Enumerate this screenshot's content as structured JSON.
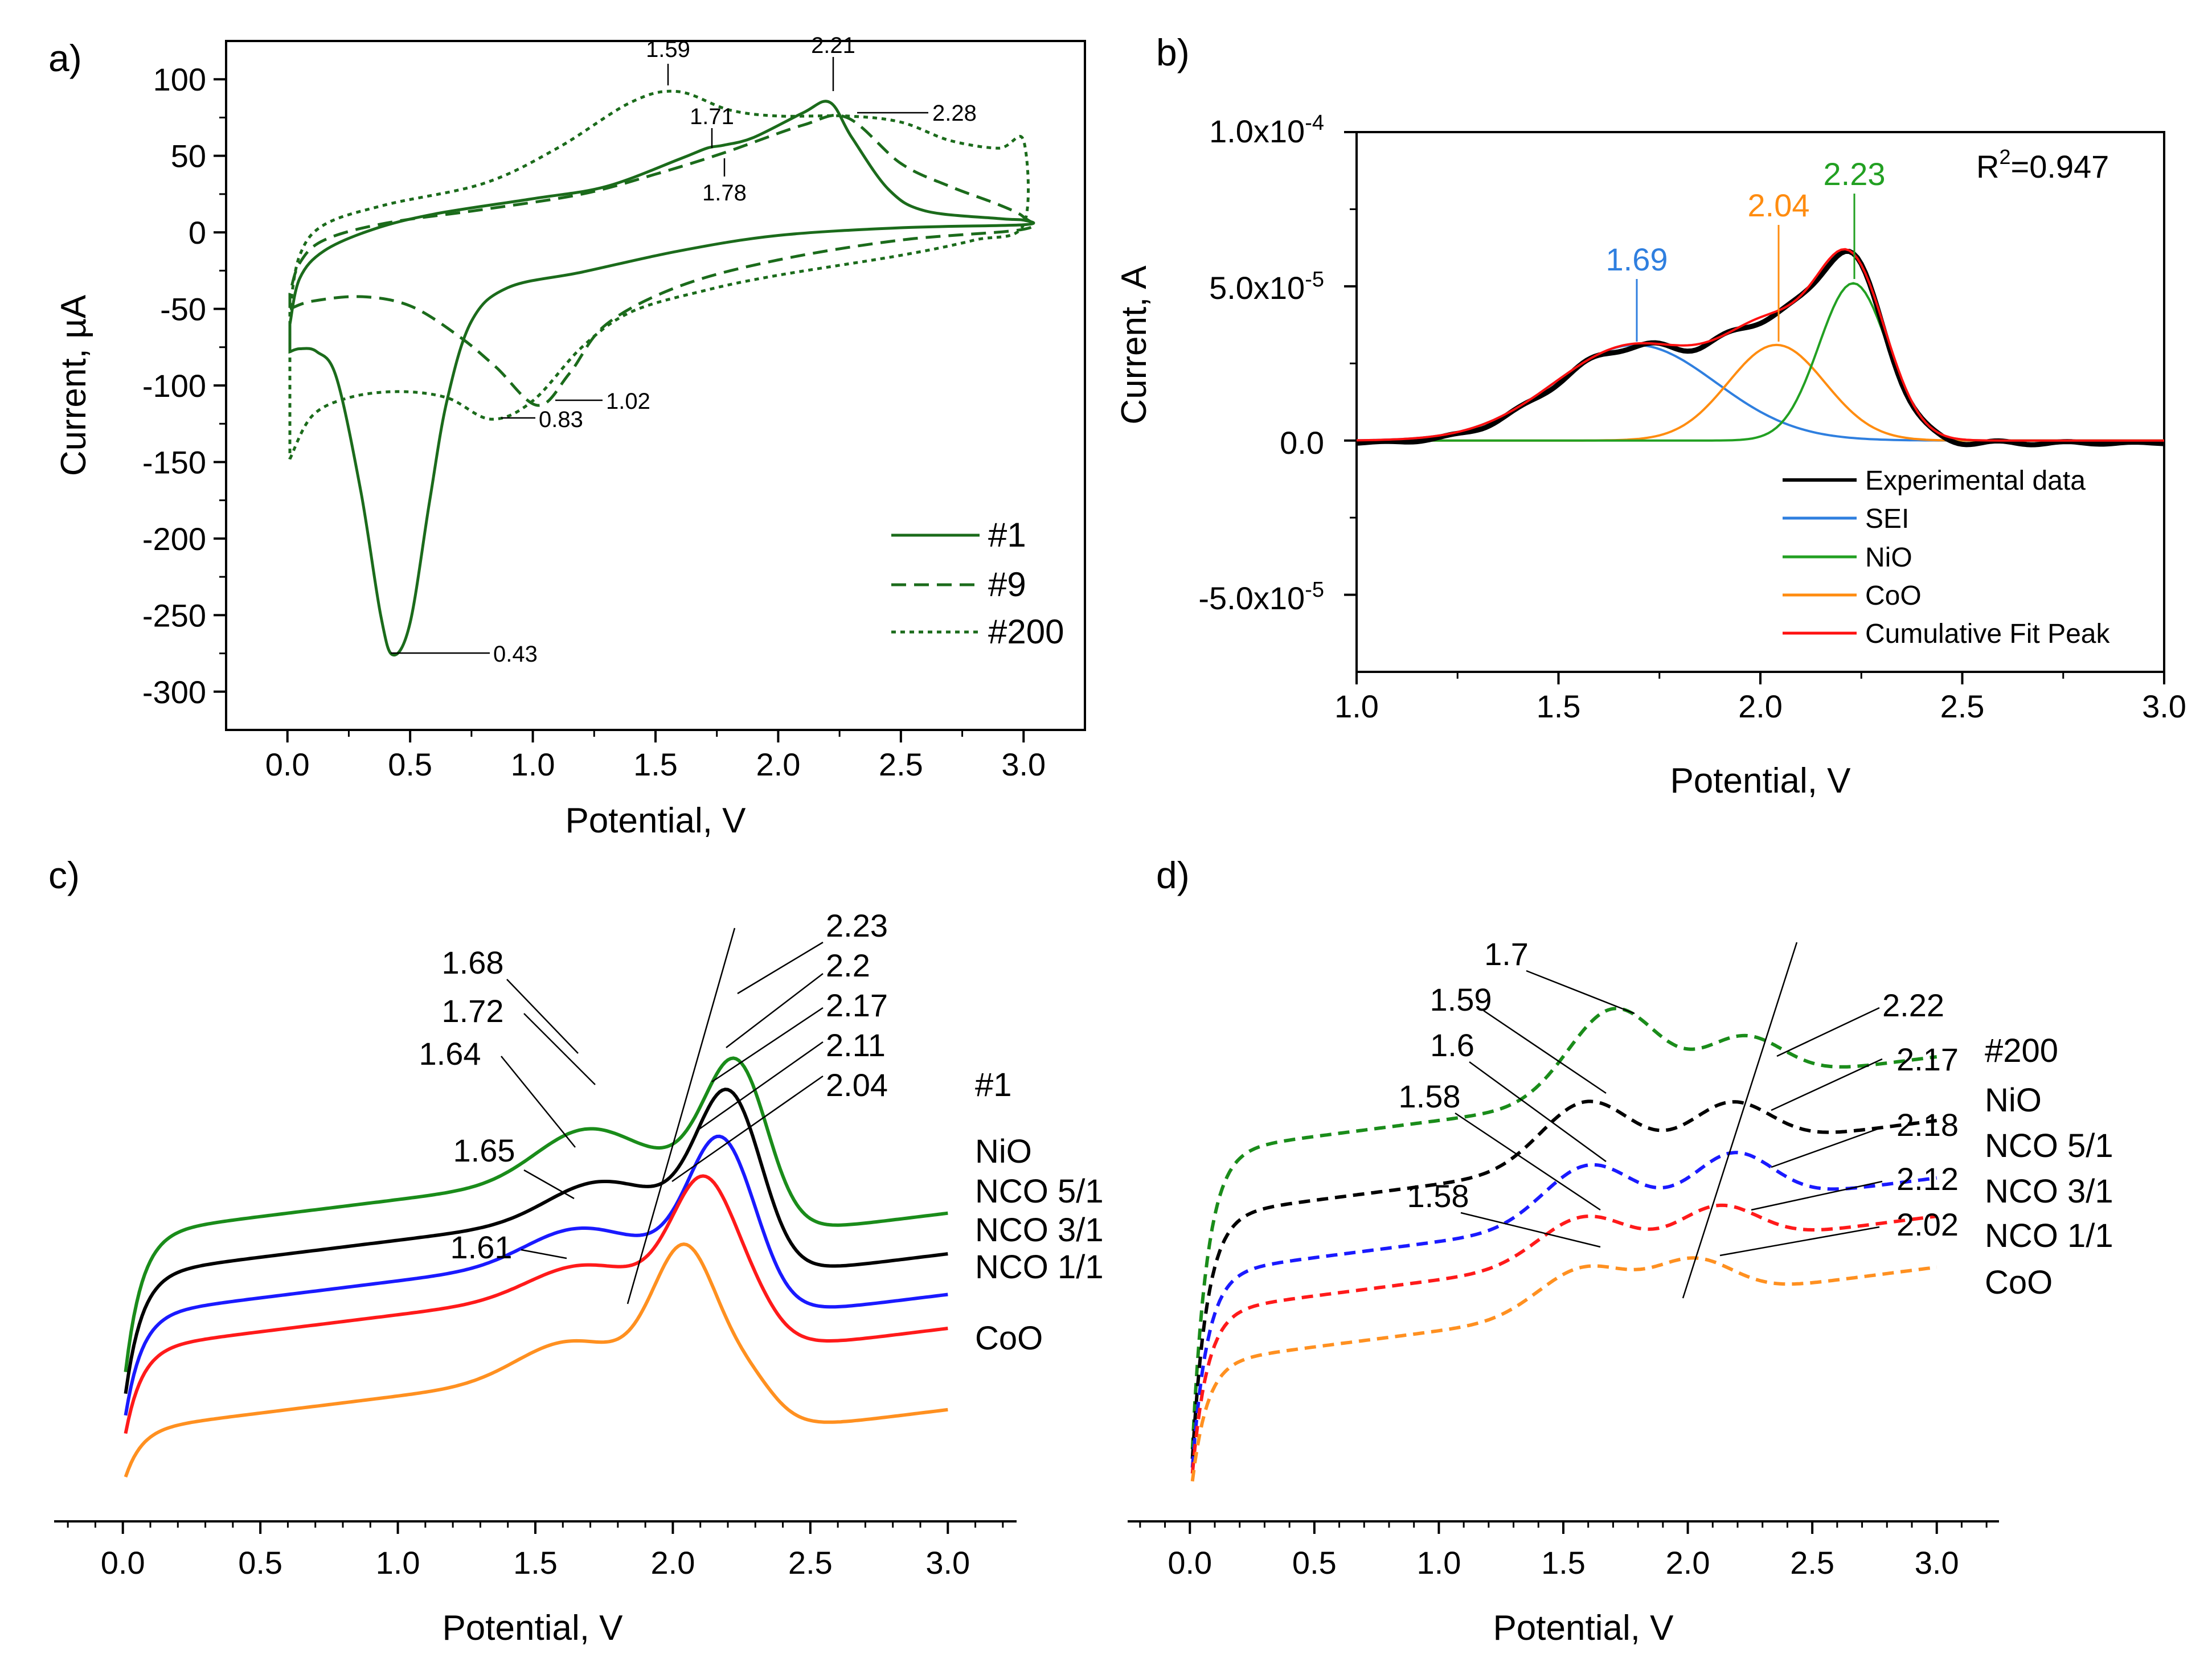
{
  "panels": {
    "a": {
      "letter": "a)",
      "xlabel": "Potential, V",
      "ylabel": "Current, µA",
      "xlim": [
        -0.25,
        3.25
      ],
      "ylim": [
        -325,
        125
      ],
      "xticks": [
        "0.0",
        "0.5",
        "1.0",
        "1.5",
        "2.0",
        "2.5",
        "3.0"
      ],
      "yticks": [
        "100",
        "50",
        "0",
        "-50",
        "-100",
        "-150",
        "-200",
        "-250",
        "-300"
      ],
      "legend": [
        "#1",
        "#9",
        "#200"
      ],
      "annotations": [
        "1.59",
        "2.21",
        "1.71",
        "2.28",
        "1.78",
        "1.02",
        "0.83",
        "0.43"
      ]
    },
    "b": {
      "letter": "b)",
      "xlabel": "Potential, V",
      "ylabel": "Current, A",
      "xlim": [
        1.0,
        3.0
      ],
      "ylim": [
        -7.5e-05,
        0.0001
      ],
      "xticks": [
        "1.0",
        "1.5",
        "2.0",
        "2.5",
        "3.0"
      ],
      "yticks": [
        "1.0x10",
        "5.0x10",
        "0.0",
        "-5.0x10"
      ],
      "ytick_exponents": [
        "-4",
        "-5",
        "",
        "-5"
      ],
      "r2_prefix": "R",
      "r2_sup": "2",
      "r2_value": "=0.947",
      "peak_labels": [
        "1.69",
        "2.04",
        "2.23"
      ],
      "legend": [
        "Experimental data",
        "SEI",
        "NiO",
        "CoO",
        "Cumulative Fit Peak"
      ]
    },
    "c": {
      "letter": "c)",
      "xlabel": "Potential, V",
      "xticks": [
        "0.0",
        "0.5",
        "1.0",
        "1.5",
        "2.0",
        "2.5",
        "3.0"
      ],
      "cycle": "#1",
      "curve_labels": [
        "NiO",
        "NCO 5/1",
        "NCO 3/1",
        "NCO 1/1",
        "CoO"
      ],
      "peak_labels_left": [
        "1.68",
        "1.72",
        "1.64",
        "1.65",
        "1.61"
      ],
      "peak_labels_right": [
        "2.23",
        "2.2",
        "2.17",
        "2.11",
        "2.04"
      ]
    },
    "d": {
      "letter": "d)",
      "xlabel": "Potential, V",
      "xticks": [
        "0.0",
        "0.5",
        "1.0",
        "1.5",
        "2.0",
        "2.5",
        "3.0"
      ],
      "cycle": "#200",
      "curve_labels": [
        "NiO",
        "NCO 5/1",
        "NCO 3/1",
        "NCO 1/1",
        "CoO"
      ],
      "peak_labels_left": [
        "1.7",
        "1.59",
        "1.6",
        "1.58",
        "1.58"
      ],
      "peak_labels_right": [
        "2.22",
        "2.17",
        "2.18",
        "2.12",
        "2.02"
      ]
    }
  },
  "colors": {
    "nio": "#1a8c1a",
    "nco51": "#000000",
    "nco31": "#1a1aff",
    "nco11": "#ff1a1a",
    "coo": "#ff9020",
    "dark_green": "#1b6b1b",
    "sei": "#2f7fdf",
    "fit_nio": "#22a022",
    "fit_coo": "#ff8c10",
    "fit_sum": "#ff1010"
  },
  "chart_data": [
    {
      "type": "line",
      "title": "a)",
      "xlabel": "Potential, V",
      "ylabel": "Current, µA",
      "xlim": [
        -0.25,
        3.25
      ],
      "ylim": [
        -325,
        125
      ],
      "series": [
        {
          "name": "#1",
          "style": "solid",
          "x": [
            0.01,
            0.05,
            0.12,
            0.2,
            0.3,
            0.38,
            0.43,
            0.5,
            0.58,
            0.65,
            0.75,
            0.9,
            1.2,
            1.6,
            2.0,
            2.5,
            3.0,
            3.0,
            2.9,
            2.6,
            2.45,
            2.3,
            2.21,
            2.1,
            1.9,
            1.78,
            1.71,
            1.6,
            1.3,
            1.0,
            0.6,
            0.35,
            0.15,
            0.05,
            0.01
          ],
          "y": [
            -78,
            -76,
            -78,
            -95,
            -170,
            -250,
            -276,
            -255,
            -175,
            -110,
            -58,
            -36,
            -26,
            -12,
            -2,
            3,
            5,
            8,
            9,
            14,
            28,
            62,
            85,
            78,
            62,
            57,
            55,
            48,
            30,
            22,
            12,
            2,
            -12,
            -30,
            -60
          ]
        },
        {
          "name": "#9",
          "style": "dashed",
          "x": [
            0.01,
            0.1,
            0.3,
            0.5,
            0.7,
            0.85,
            1.02,
            1.15,
            1.3,
            1.6,
            2.0,
            2.5,
            3.0,
            3.0,
            2.9,
            2.7,
            2.5,
            2.28,
            2.1,
            1.78,
            1.5,
            1.2,
            0.8,
            0.4,
            0.15,
            0.05,
            0.01
          ],
          "y": [
            -50,
            -45,
            -42,
            -48,
            -68,
            -88,
            -113,
            -92,
            -60,
            -35,
            -18,
            -5,
            2,
            10,
            18,
            30,
            45,
            75,
            70,
            52,
            38,
            25,
            15,
            6,
            -5,
            -20,
            -40
          ]
        },
        {
          "name": "#200",
          "style": "dotted",
          "x": [
            0.01,
            0.1,
            0.25,
            0.45,
            0.65,
            0.83,
            1.0,
            1.2,
            1.4,
            1.7,
            2.0,
            2.5,
            2.8,
            3.0,
            3.0,
            2.9,
            2.7,
            2.5,
            2.28,
            2.0,
            1.8,
            1.59,
            1.4,
            1.1,
            0.8,
            0.4,
            0.15,
            0.05,
            0.01
          ],
          "y": [
            -148,
            -120,
            -108,
            -104,
            -108,
            -122,
            -110,
            -75,
            -52,
            -38,
            -28,
            -15,
            -5,
            5,
            60,
            55,
            60,
            72,
            76,
            76,
            80,
            92,
            85,
            55,
            32,
            18,
            5,
            -15,
            -50
          ]
        }
      ]
    },
    {
      "type": "line",
      "title": "b)",
      "xlabel": "Potential, V",
      "ylabel": "Current, A",
      "xlim": [
        1.0,
        3.0
      ],
      "ylim": [
        -7.5e-05,
        0.0001
      ],
      "annotation": "R2=0.947",
      "peaks": [
        {
          "name": "SEI",
          "center": 1.69,
          "amplitude": 3.1e-05,
          "sigma": 0.2
        },
        {
          "name": "CoO",
          "center": 2.04,
          "amplitude": 3.1e-05,
          "sigma": 0.12
        },
        {
          "name": "NiO",
          "center": 2.23,
          "amplitude": 5.1e-05,
          "sigma": 0.085
        }
      ],
      "series": [
        {
          "name": "Experimental data",
          "derived_from": "sum of peaks"
        },
        {
          "name": "SEI"
        },
        {
          "name": "NiO"
        },
        {
          "name": "CoO"
        },
        {
          "name": "Cumulative Fit Peak"
        }
      ]
    },
    {
      "type": "line",
      "title": "c) #1",
      "xlabel": "Potential, V",
      "xlim": [
        -0.25,
        3.25
      ],
      "y_units": "arbitrary, vertically offset",
      "series": [
        {
          "name": "NiO",
          "offset": 0.44,
          "peak1": 1.68,
          "peak2": 2.23,
          "amp1": 0.07,
          "amp2": 0.16
        },
        {
          "name": "NCO 5/1",
          "offset": 0.38,
          "peak1": 1.72,
          "peak2": 2.2,
          "amp1": 0.05,
          "amp2": 0.17
        },
        {
          "name": "NCO 3/1",
          "offset": 0.32,
          "peak1": 1.64,
          "peak2": 2.17,
          "amp1": 0.045,
          "amp2": 0.16
        },
        {
          "name": "NCO 1/1",
          "offset": 0.27,
          "peak1": 1.65,
          "peak2": 2.11,
          "amp1": 0.04,
          "amp2": 0.15
        },
        {
          "name": "CoO",
          "offset": 0.15,
          "peak1": 1.61,
          "peak2": 2.04,
          "amp1": 0.05,
          "amp2": 0.17
        }
      ]
    },
    {
      "type": "line",
      "title": "d) #200",
      "xlabel": "Potential, V",
      "xlim": [
        -0.25,
        3.25
      ],
      "y_units": "arbitrary, vertically offset",
      "series": [
        {
          "name": "NiO",
          "offset": 0.55,
          "peak1": 1.7,
          "peak2": 2.22,
          "amp1": 0.14,
          "amp2": 0.07
        },
        {
          "name": "NCO 5/1",
          "offset": 0.45,
          "peak1": 1.59,
          "peak2": 2.17,
          "amp1": 0.1,
          "amp2": 0.07
        },
        {
          "name": "NCO 3/1",
          "offset": 0.36,
          "peak1": 1.6,
          "peak2": 2.18,
          "amp1": 0.09,
          "amp2": 0.08
        },
        {
          "name": "NCO 1/1",
          "offset": 0.3,
          "peak1": 1.58,
          "peak2": 2.12,
          "amp1": 0.07,
          "amp2": 0.06
        },
        {
          "name": "CoO",
          "offset": 0.22,
          "peak1": 1.58,
          "peak2": 2.02,
          "amp1": 0.07,
          "amp2": 0.06
        }
      ]
    }
  ]
}
